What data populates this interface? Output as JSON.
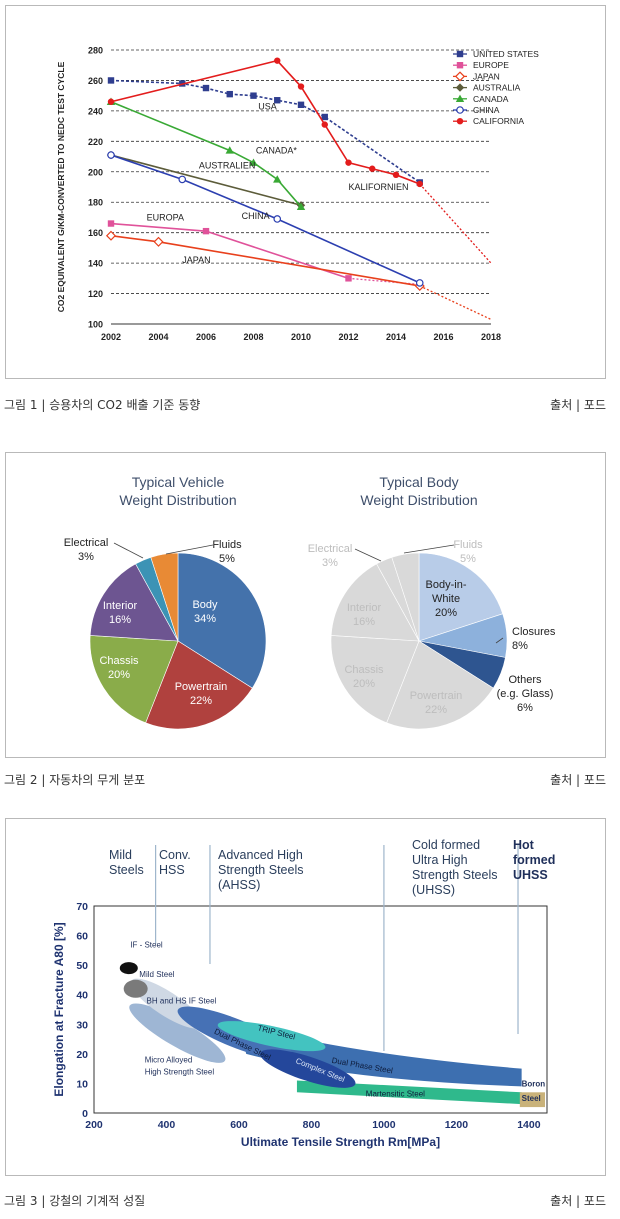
{
  "figure1": {
    "caption": "그림 1 | 승용차의 CO2 배출 기준 동향",
    "source": "출처 | 포드",
    "chart_data": {
      "type": "line",
      "ylabel": "CO2 EQUIVALENT G/KM-CONVERTED TO NEDC TEST CYCLE",
      "xlabel": "",
      "xlim": [
        2002,
        2018
      ],
      "ylim": [
        100,
        280
      ],
      "xticks": [
        "2002",
        "2004",
        "2006",
        "2008",
        "2010",
        "2012",
        "2014",
        "2016",
        "2018"
      ],
      "yticks": [
        "100",
        "120",
        "140",
        "160",
        "180",
        "200",
        "220",
        "240",
        "260",
        "280"
      ],
      "series": [
        {
          "name": "UNITED STATES",
          "color": "#2f3e8f",
          "marker": "square",
          "x": [
            2002,
            2005,
            2006,
            2007,
            2008,
            2009,
            2010,
            2011,
            2015
          ],
          "y": [
            260,
            258,
            255,
            251,
            250,
            247,
            244,
            236,
            193
          ]
        },
        {
          "name": "EUROPE",
          "color": "#e0529a",
          "marker": "square",
          "x": [
            2002,
            2006,
            2012
          ],
          "y": [
            166,
            161,
            130
          ],
          "proj_x": [
            2012,
            2015
          ],
          "proj_y": [
            130,
            126
          ]
        },
        {
          "name": "JAPAN",
          "color": "#e8401c",
          "marker": "diamond-open",
          "x": [
            2002,
            2004,
            2015
          ],
          "y": [
            158,
            154,
            125
          ],
          "proj_x": [
            2015,
            2018
          ],
          "proj_y": [
            125,
            103
          ]
        },
        {
          "name": "AUSTRALIA",
          "color": "#5c5c3a",
          "marker": "diamond",
          "x": [
            2002,
            2010
          ],
          "y": [
            211,
            178
          ]
        },
        {
          "name": "CANADA",
          "color": "#39a935",
          "marker": "triangle",
          "x": [
            2002,
            2007,
            2008,
            2009,
            2010
          ],
          "y": [
            246,
            214,
            206,
            195,
            177
          ]
        },
        {
          "name": "CHINA",
          "color": "#2c3fb0",
          "marker": "circle-open",
          "x": [
            2002,
            2005,
            2009,
            2015
          ],
          "y": [
            211,
            195,
            169,
            127
          ]
        },
        {
          "name": "CALIFORNIA",
          "color": "#e31c1c",
          "marker": "circle",
          "x": [
            2002,
            2009,
            2010,
            2011,
            2012,
            2013,
            2014,
            2015
          ],
          "y": [
            246,
            273,
            256,
            231,
            206,
            202,
            198,
            192
          ],
          "proj_x": [
            2015,
            2018
          ],
          "proj_y": [
            192,
            140
          ]
        }
      ],
      "annotations": [
        {
          "text": "USA",
          "x": 2008.2,
          "y": 241
        },
        {
          "text": "CANADA*",
          "x": 2008.1,
          "y": 212
        },
        {
          "text": "AUSTRALIEN",
          "x": 2005.7,
          "y": 202
        },
        {
          "text": "CHINA",
          "x": 2007.5,
          "y": 169
        },
        {
          "text": "EUROPA",
          "x": 2003.5,
          "y": 168
        },
        {
          "text": "JAPAN",
          "x": 2005,
          "y": 140
        },
        {
          "text": "KALIFORNIEN",
          "x": 2012,
          "y": 188
        }
      ]
    }
  },
  "figure2": {
    "caption": "그림 2 | 자동차의 무게 분포",
    "source": "출처 | 포드",
    "chart_data": [
      {
        "type": "pie",
        "title": [
          "Typical Vehicle",
          "Weight Distribution"
        ],
        "slices": [
          {
            "label": "Body",
            "value": 34,
            "pct": "34%",
            "color": "#4472ab"
          },
          {
            "label": "Powertrain",
            "value": 22,
            "pct": "22%",
            "color": "#b0413e"
          },
          {
            "label": "Chassis",
            "value": 20,
            "pct": "20%",
            "color": "#8aac4a"
          },
          {
            "label": "Interior",
            "value": 16,
            "pct": "16%",
            "color": "#6d5591"
          },
          {
            "label": "Electrical",
            "value": 3,
            "pct": "3%",
            "color": "#3c93b5"
          },
          {
            "label": "Fluids",
            "value": 5,
            "pct": "5%",
            "color": "#e88a35"
          }
        ]
      },
      {
        "type": "pie",
        "title": [
          "Typical Body",
          "Weight Distribution"
        ],
        "slices": [
          {
            "label": "Body-in-White",
            "value": 20,
            "pct": "20%",
            "color": "#b8cce8"
          },
          {
            "label": "Closures",
            "value": 8,
            "pct": "8%",
            "color": "#8db1dc"
          },
          {
            "label": "Others (e.g. Glass)",
            "value": 6,
            "pct": "6%",
            "color": "#2e5590"
          },
          {
            "label": "Powertrain",
            "value": 22,
            "pct": "22%",
            "color": "#d9d9d9"
          },
          {
            "label": "Chassis",
            "value": 20,
            "pct": "20%",
            "color": "#d9d9d9"
          },
          {
            "label": "Interior",
            "value": 16,
            "pct": "16%",
            "color": "#d9d9d9"
          },
          {
            "label": "Electrical",
            "value": 3,
            "pct": "3%",
            "color": "#d9d9d9"
          },
          {
            "label": "Fluids",
            "value": 5,
            "pct": "5%",
            "color": "#d9d9d9"
          }
        ]
      }
    ]
  },
  "figure3": {
    "caption": "그림 3 | 강철의 기계적 성질",
    "source": "출처 | 포드",
    "chart_data": {
      "type": "scatter",
      "xlabel": "Ultimate Tensile Strength Rm[MPa]",
      "ylabel": "Elongation at Fracture A80 [%]",
      "xlim": [
        200,
        1450
      ],
      "ylim": [
        0,
        70
      ],
      "xticks": [
        "200",
        "400",
        "600",
        "800",
        "1000",
        "1200",
        "1400"
      ],
      "yticks": [
        "0",
        "10",
        "20",
        "30",
        "40",
        "50",
        "60",
        "70"
      ],
      "categories": [
        {
          "label": [
            "Mild",
            "Steels"
          ],
          "x_from": 200,
          "x_to": 370
        },
        {
          "label": [
            "Conv.",
            "HSS"
          ],
          "x_from": 370,
          "x_to": 520
        },
        {
          "label": [
            "Advanced High",
            "Strength Steels",
            "(AHSS)"
          ],
          "x_from": 520,
          "x_to": 1000
        },
        {
          "label": [
            "Cold formed",
            "Ultra High",
            "Strength Steels",
            "(UHSS)"
          ],
          "x_from": 1000,
          "x_to": 1370
        },
        {
          "label": [
            "Hot",
            "formed",
            "UHSS"
          ],
          "x_from": 1370,
          "x_to": 1450
        }
      ],
      "regions": [
        {
          "name": "IF - Steel",
          "color": "#111111"
        },
        {
          "name": "Mild Steel",
          "color": "#7a7a7a"
        },
        {
          "name": "BH and HS IF Steel",
          "color": "#cfd8e4"
        },
        {
          "name": "Micro Alloyed High Strength Steel",
          "color": "#9eb6d4"
        },
        {
          "name": "Dual Phase Steel",
          "color": "#4671b5"
        },
        {
          "name": "TRIP Steel",
          "color": "#43c3c0"
        },
        {
          "name": "Complex Steel",
          "color": "#24479b"
        },
        {
          "name": "Martensitic Steel",
          "color": "#2fb98c"
        },
        {
          "name": "Boron Steel",
          "color": "#c9b27a"
        }
      ],
      "region_labels": {
        "if": "IF - Steel",
        "mild": "Mild Steel",
        "bh": "BH and HS IF Steel",
        "micro": [
          "Micro Alloyed",
          "High Strength Steel"
        ],
        "dp_left": "Dual Phase Steel",
        "dp_right": "Dual Phase Steel",
        "trip": "TRIP Steel",
        "complex": "Complex Steel",
        "mart": "Martensitic Steel",
        "boron": [
          "Boron",
          "Steel"
        ]
      }
    }
  }
}
